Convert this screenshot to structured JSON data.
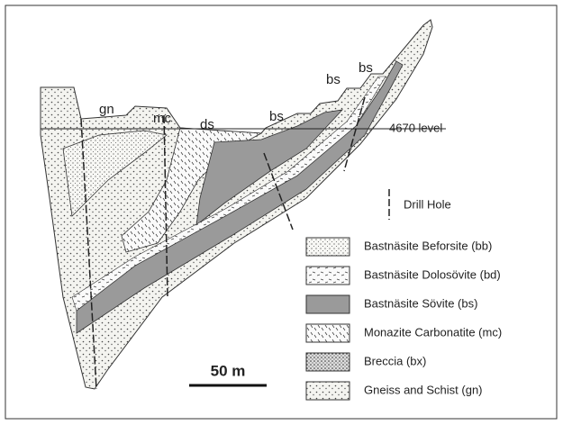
{
  "section_labels": [
    "gn",
    "mc",
    "ds",
    "bs",
    "bs",
    "bs"
  ],
  "level_label": "4670 level",
  "drill_hole_legend": "Drill Hole",
  "legend": [
    "Bastnäsite Beforsite (bb)",
    "Bastnäsite Dolosövite (bd)",
    "Bastnäsite Sövite (bs)",
    "Monazite Carbonatite (mc)",
    "Breccia (bx)",
    "Gneiss and Schist (gn)"
  ],
  "scale_bar": "50 m"
}
